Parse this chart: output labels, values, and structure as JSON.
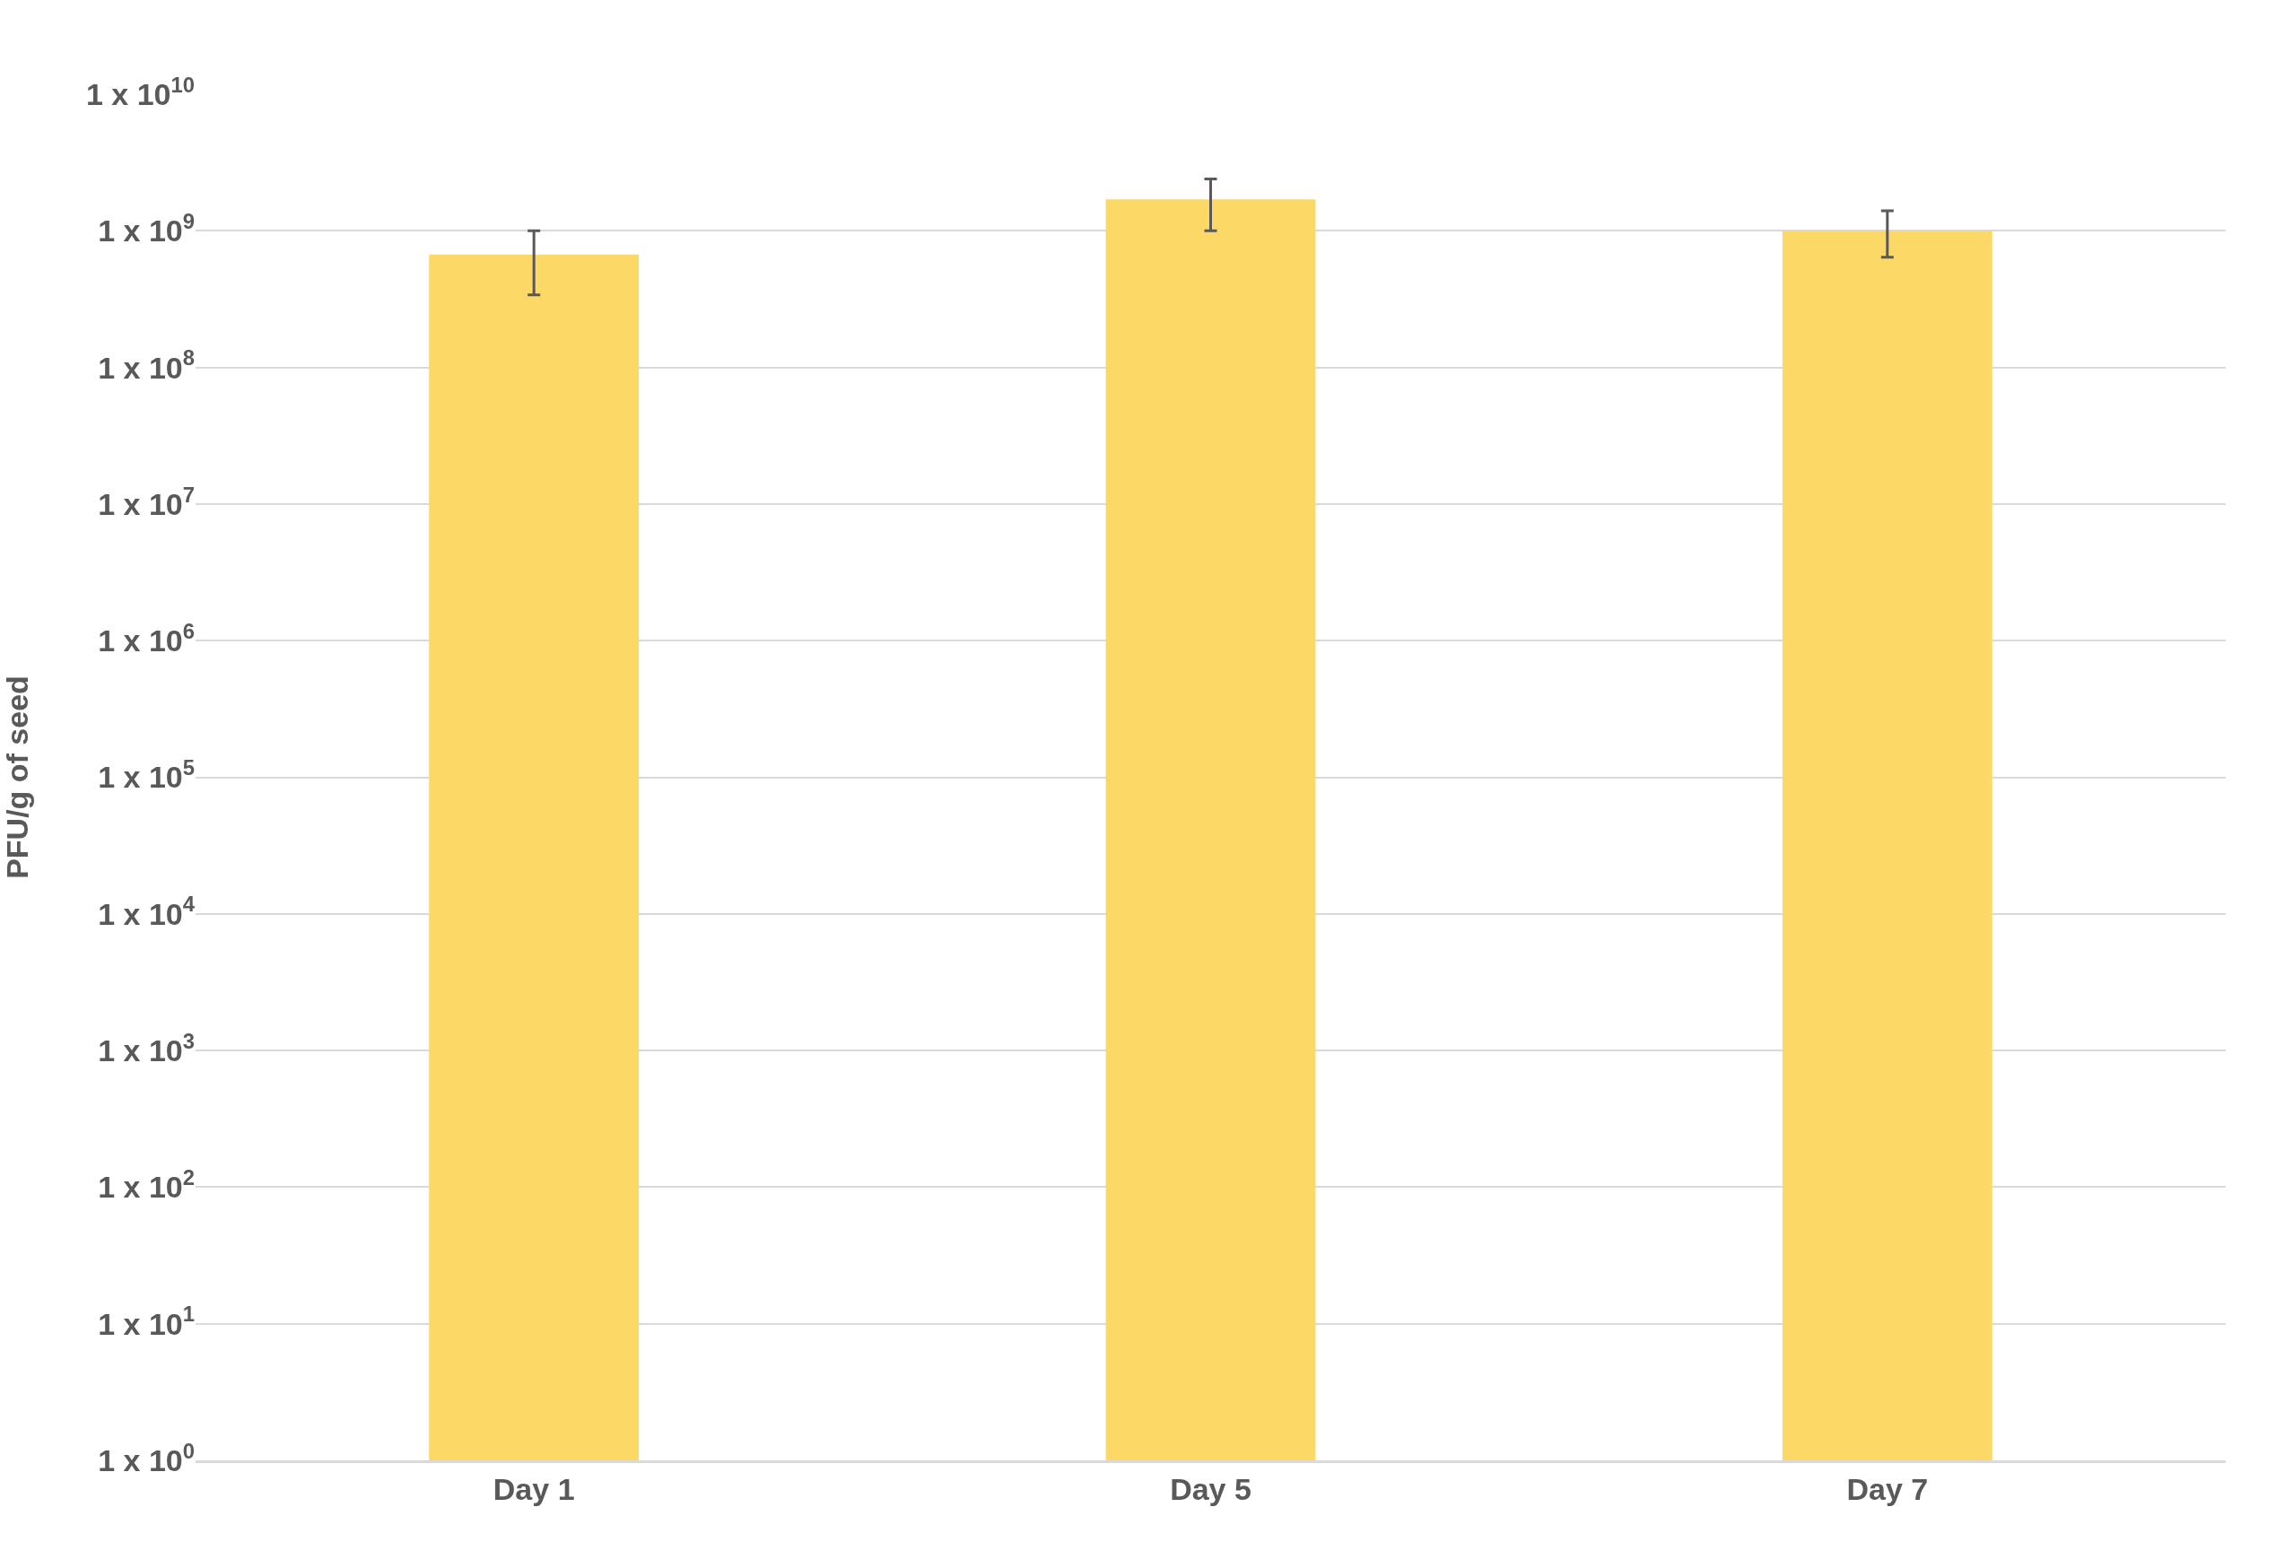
{
  "chart_data": {
    "type": "bar",
    "ylabel": "PFU/g of seed",
    "categories": [
      "Day 1",
      "Day 5",
      "Day 7"
    ],
    "values": [
      670000000.0,
      1700000000.0,
      1000000000.0
    ],
    "errors": [
      [
        340000000.0,
        1000000000.0
      ],
      [
        1000000000.0,
        2400000000.0
      ],
      [
        640000000.0,
        1400000000.0
      ]
    ],
    "color": "#fcd967",
    "log": true,
    "ylim": [
      1,
      10000000000.0
    ],
    "yticks": [
      {
        "value": 1,
        "label": "1 x 10$^{0}$"
      },
      {
        "value": 10,
        "label": "1 x 10$^{1}$"
      },
      {
        "value": 100,
        "label": "1 x 10$^{2}$"
      },
      {
        "value": 1000,
        "label": "1 x 10$^{3}$"
      },
      {
        "value": 10000,
        "label": "1 x 10$^{4}$"
      },
      {
        "value": 100000,
        "label": "1 x 10$^{5}$"
      },
      {
        "value": 1000000,
        "label": "1 x 10$^{6}$"
      },
      {
        "value": 10000000,
        "label": "1 x 10$^{7}$"
      },
      {
        "value": 100000000,
        "label": "1 x 10$^{8}$"
      },
      {
        "value": 1000000000,
        "label": "1 x 10$^{9}$"
      },
      {
        "value": 10000000000,
        "label": "1 x 10$^{10}$"
      }
    ],
    "grid": "y"
  }
}
